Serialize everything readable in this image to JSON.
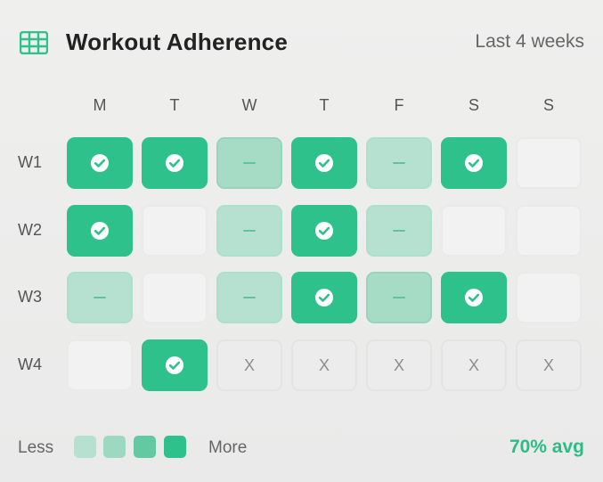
{
  "widget": {
    "title": "Workout Adherence",
    "range_label": "Last 4 weeks",
    "grid_icon": "grid-icon",
    "accent_color": "#2ec18b"
  },
  "days": [
    "M",
    "T",
    "W",
    "T",
    "F",
    "S",
    "S"
  ],
  "weeks": [
    {
      "label": "W1",
      "cells": [
        "done",
        "done",
        "partial",
        "done",
        "light",
        "done",
        "empty"
      ]
    },
    {
      "label": "W2",
      "cells": [
        "done",
        "empty",
        "light",
        "done",
        "light",
        "empty",
        "empty"
      ]
    },
    {
      "label": "W3",
      "cells": [
        "light",
        "empty",
        "light",
        "done",
        "partial",
        "done",
        "empty"
      ]
    },
    {
      "label": "W4",
      "cells": [
        "empty",
        "done",
        "future",
        "future",
        "future",
        "future",
        "future"
      ]
    }
  ],
  "cell_glyphs": {
    "done": "check-icon",
    "partial": "dash-icon",
    "light": "dash-icon",
    "future_text": "X"
  },
  "legend": {
    "less": "Less",
    "more": "More",
    "swatches": [
      "#b6e1d0",
      "#9fd8c1",
      "#63c9a3",
      "#2ec18b"
    ]
  },
  "summary": {
    "avg_label": "70% avg"
  }
}
